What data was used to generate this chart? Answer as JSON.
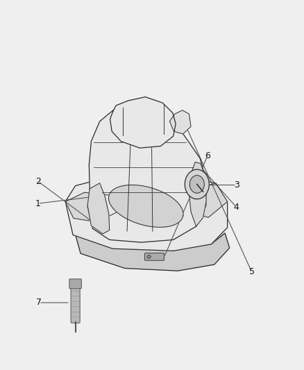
{
  "background_color": "#efefef",
  "line_color": "#2a2a2a",
  "callout_color": "#555555",
  "fill_light": "#e8e8e8",
  "fill_mid": "#d8d8d8",
  "fill_dark": "#c8c8c8",
  "label_fontsize": 9,
  "figsize": [
    4.38,
    5.33
  ],
  "dpi": 100
}
